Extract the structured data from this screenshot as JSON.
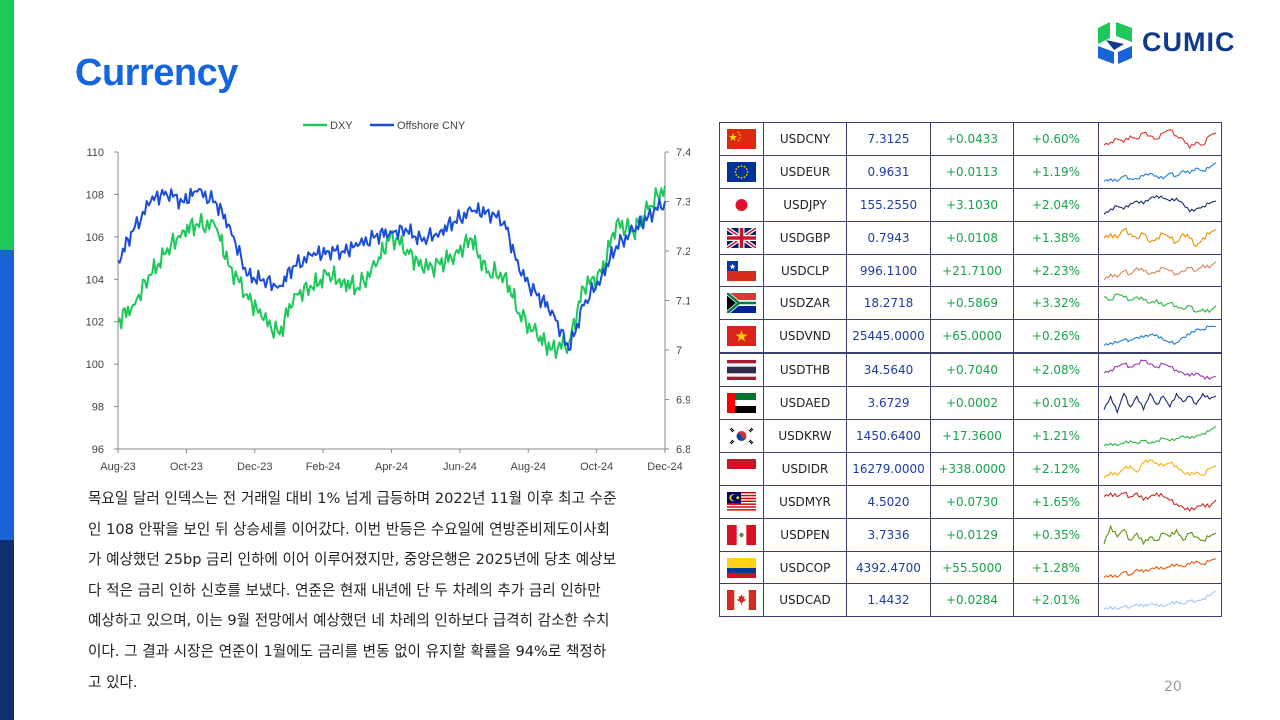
{
  "page": {
    "title": "Currency",
    "page_number": "20"
  },
  "logo": {
    "text": "CUMIC",
    "icon": "cumic-logo-icon"
  },
  "paragraph": "목요일 달러 인덱스는 전 거래일 대비 1% 넘게 급등하며 2022년 11월 이후 최고 수준인 108 안팎을 보인 뒤 상승세를 이어갔다. 이번 반등은 수요일에 연방준비제도이사회가 예상했던 25bp 금리 인하에 이어 이루어졌지만, 중앙은행은 2025년에 당초 예상보다 적은 금리 인하 신호를 보냈다. 연준은 현재 내년에 단 두 차례의 추가 금리 인하만 예상하고 있으며, 이는 9월 전망에서 예상했던 네 차례의 인하보다 급격히 감소한 수치이다. 그 결과 시장은 연준이 1월에도 금리를 변동 없이 유지할 확률을 94%로 책정하고 있다.",
  "paragraph_lines": [
    "목요일 달러 인덱스는 전 거래일 대비 1% 넘게 급등하며 2022년 11월 이후 최고 수준",
    "인 108 안팎을 보인 뒤 상승세를 이어갔다. 이번 반등은 수요일에 연방준비제도이사회",
    "가 예상했던 25bp 금리 인하에 이어 이루어졌지만, 중앙은행은 2025년에 당초 예상보",
    "다 적은 금리 인하 신호를 보냈다. 연준은 현재 내년에 단 두 차례의 추가 금리 인하만",
    "예상하고 있으며, 이는 9월 전망에서 예상했던 네 차례의 인하보다 급격히 감소한 수치",
    "이다. 그 결과 시장은 연준이 1월에도 금리를 변동 없이 유지할 확률을 94%로 책정하",
    "고 있다."
  ],
  "chart_data": {
    "type": "line",
    "title": "",
    "legend_position": "top",
    "x_tick_labels": [
      "Aug-23",
      "Oct-23",
      "Dec-23",
      "Feb-24",
      "Apr-24",
      "Jun-24",
      "Aug-24",
      "Oct-24",
      "Dec-24"
    ],
    "y_left": {
      "ticks": [
        "110",
        "108",
        "106",
        "104",
        "102",
        "100",
        "98",
        "96"
      ],
      "ylim": [
        96,
        110
      ]
    },
    "y_right": {
      "ticks": [
        "7.4",
        "7.3",
        "7.2",
        "7.1",
        "7",
        "6.9",
        "6.8"
      ],
      "ylim": [
        6.8,
        7.4
      ]
    },
    "series": [
      {
        "name": "DXY",
        "axis": "left",
        "color": "#1ec85a",
        "x": [
          "2023-08-01",
          "2023-08-15",
          "2023-09-01",
          "2023-09-15",
          "2023-10-01",
          "2023-10-15",
          "2023-11-01",
          "2023-11-15",
          "2023-12-01",
          "2023-12-15",
          "2024-01-01",
          "2024-01-15",
          "2024-02-01",
          "2024-02-15",
          "2024-03-01",
          "2024-03-15",
          "2024-04-01",
          "2024-04-15",
          "2024-05-01",
          "2024-05-15",
          "2024-06-01",
          "2024-06-15",
          "2024-07-01",
          "2024-07-15",
          "2024-08-01",
          "2024-08-15",
          "2024-09-01",
          "2024-09-15",
          "2024-10-01",
          "2024-10-15",
          "2024-11-01",
          "2024-11-15",
          "2024-12-01",
          "2024-12-15",
          "2024-12-31"
        ],
        "values": [
          102.0,
          102.8,
          104.2,
          105.2,
          106.3,
          106.6,
          106.5,
          104.6,
          103.3,
          102.2,
          101.4,
          103.3,
          103.6,
          104.2,
          103.9,
          103.6,
          104.6,
          106.1,
          105.4,
          104.5,
          104.7,
          105.2,
          105.9,
          104.3,
          104.2,
          102.4,
          101.3,
          100.7,
          101.0,
          103.6,
          104.3,
          106.7,
          106.2,
          107.3,
          108.4
        ]
      },
      {
        "name": "Offshore CNY",
        "axis": "right",
        "color": "#1a4ed8",
        "x": [
          "2023-08-01",
          "2023-08-15",
          "2023-09-01",
          "2023-09-15",
          "2023-10-01",
          "2023-10-15",
          "2023-11-01",
          "2023-11-15",
          "2023-12-01",
          "2023-12-15",
          "2024-01-01",
          "2024-01-15",
          "2024-02-01",
          "2024-02-15",
          "2024-03-01",
          "2024-03-15",
          "2024-04-01",
          "2024-04-15",
          "2024-05-01",
          "2024-05-15",
          "2024-06-01",
          "2024-06-15",
          "2024-07-01",
          "2024-07-15",
          "2024-08-01",
          "2024-08-15",
          "2024-09-01",
          "2024-09-15",
          "2024-10-01",
          "2024-10-15",
          "2024-11-01",
          "2024-11-15",
          "2024-12-01",
          "2024-12-15",
          "2024-12-31"
        ],
        "values": [
          7.18,
          7.24,
          7.3,
          7.32,
          7.3,
          7.32,
          7.3,
          7.25,
          7.15,
          7.14,
          7.13,
          7.17,
          7.19,
          7.2,
          7.2,
          7.21,
          7.23,
          7.24,
          7.24,
          7.22,
          7.24,
          7.26,
          7.28,
          7.28,
          7.26,
          7.16,
          7.11,
          7.08,
          7.0,
          7.09,
          7.15,
          7.21,
          7.24,
          7.27,
          7.3
        ]
      }
    ]
  },
  "table": {
    "rows": [
      {
        "flag": "cn-flag",
        "code": "USDCNY",
        "rate": "7.3125",
        "change": "+0.0433",
        "pct": "+0.60%",
        "spark_color": "#e03131",
        "spark": [
          5,
          6,
          7,
          6,
          8,
          7,
          9,
          8,
          7,
          9,
          10,
          8,
          7,
          4,
          6,
          5,
          8,
          9
        ]
      },
      {
        "flag": "eu-flag",
        "code": "USDEUR",
        "rate": "0.9631",
        "change": "+0.0113",
        "pct": "+1.19%",
        "spark_color": "#1c7ed6",
        "spark": [
          4,
          5,
          4,
          6,
          5,
          5,
          6,
          7,
          6,
          5,
          7,
          6,
          8,
          7,
          9,
          8,
          9,
          11
        ]
      },
      {
        "flag": "jp-flag",
        "code": "USDJPY",
        "rate": "155.2550",
        "change": "+3.1030",
        "pct": "+2.04%",
        "spark_color": "#1a2b6b",
        "spark": [
          3,
          5,
          6,
          5,
          7,
          8,
          7,
          9,
          10,
          9,
          8,
          9,
          7,
          4,
          5,
          6,
          7,
          8
        ]
      },
      {
        "flag": "gb-flag",
        "code": "USDGBP",
        "rate": "0.7943",
        "change": "+0.0108",
        "pct": "+1.38%",
        "spark_color": "#f08c00",
        "spark": [
          6,
          7,
          6,
          8,
          7,
          6,
          7,
          5,
          6,
          7,
          6,
          5,
          7,
          6,
          4,
          6,
          7,
          8
        ]
      },
      {
        "flag": "cl-flag",
        "code": "USDCLP",
        "rate": "996.1100",
        "change": "+21.7100",
        "pct": "+2.23%",
        "spark_color": "#d9865a",
        "spark": [
          3,
          5,
          4,
          6,
          5,
          7,
          6,
          5,
          6,
          7,
          6,
          5,
          6,
          7,
          6,
          8,
          7,
          9
        ]
      },
      {
        "flag": "za-flag",
        "code": "USDZAR",
        "rate": "18.2718",
        "change": "+0.5869",
        "pct": "+3.32%",
        "spark_color": "#2fb344",
        "spark": [
          8,
          7,
          9,
          8,
          7,
          8,
          7,
          6,
          7,
          5,
          6,
          5,
          4,
          5,
          3,
          4,
          3,
          5
        ]
      },
      {
        "flag": "vn-flag",
        "code": "USDVND",
        "rate": "25445.0000",
        "change": "+65.0000",
        "pct": "+0.26%",
        "spark_color": "#1c7ed6",
        "spark": [
          2,
          3,
          3,
          4,
          4,
          5,
          5,
          6,
          6,
          4,
          3,
          3,
          5,
          6,
          8,
          8,
          9,
          9
        ]
      },
      {
        "flag": "th-flag",
        "code": "USDTHB",
        "rate": "34.5640",
        "change": "+0.7040",
        "pct": "+2.08%",
        "spark_color": "#9c36b5",
        "spark": [
          6,
          7,
          8,
          9,
          8,
          9,
          10,
          9,
          8,
          9,
          8,
          7,
          6,
          5,
          6,
          5,
          4,
          5
        ]
      },
      {
        "flag": "ae-flag",
        "code": "USDAED",
        "rate": "3.6729",
        "change": "+0.0002",
        "pct": "+0.01%",
        "spark_color": "#1a2b6b",
        "spark": [
          4,
          9,
          3,
          10,
          5,
          9,
          4,
          10,
          6,
          9,
          5,
          10,
          7,
          9,
          6,
          10,
          8,
          9
        ]
      },
      {
        "flag": "kr-flag",
        "code": "USDKRW",
        "rate": "1450.6400",
        "change": "+17.3600",
        "pct": "+1.21%",
        "spark_color": "#2fb344",
        "spark": [
          2,
          3,
          2,
          3,
          4,
          3,
          4,
          3,
          4,
          5,
          4,
          5,
          6,
          5,
          6,
          7,
          8,
          10
        ]
      },
      {
        "flag": "id-flag",
        "code": "USDIDR",
        "rate": "16279.0000",
        "change": "+338.0000",
        "pct": "+2.12%",
        "spark_color": "#fab005",
        "spark": [
          4,
          6,
          5,
          7,
          8,
          6,
          9,
          10,
          9,
          8,
          9,
          8,
          6,
          5,
          6,
          5,
          7,
          8
        ]
      },
      {
        "flag": "my-flag",
        "code": "USDMYR",
        "rate": "4.5020",
        "change": "+0.0730",
        "pct": "+1.65%",
        "spark_color": "#c92a2a",
        "spark": [
          9,
          10,
          9,
          10,
          9,
          10,
          8,
          9,
          10,
          9,
          8,
          7,
          6,
          5,
          6,
          7,
          6,
          8
        ]
      },
      {
        "flag": "pe-flag",
        "code": "USDPEN",
        "rate": "3.7336",
        "change": "+0.0129",
        "pct": "+0.35%",
        "spark_color": "#5c940d",
        "spark": [
          4,
          9,
          6,
          8,
          5,
          7,
          4,
          6,
          5,
          7,
          6,
          8,
          5,
          7,
          6,
          5,
          6,
          7
        ]
      },
      {
        "flag": "co-flag",
        "code": "USDCOP",
        "rate": "4392.4700",
        "change": "+55.5000",
        "pct": "+1.28%",
        "spark_color": "#e8590c",
        "spark": [
          3,
          4,
          3,
          5,
          4,
          6,
          5,
          6,
          7,
          6,
          7,
          8,
          7,
          8,
          9,
          8,
          9,
          10
        ]
      },
      {
        "flag": "ca-flag",
        "code": "USDCAD",
        "rate": "1.4432",
        "change": "+0.0284",
        "pct": "+2.01%",
        "spark_color": "#a5c8f0",
        "spark": [
          3,
          4,
          3,
          4,
          4,
          5,
          4,
          5,
          5,
          4,
          5,
          6,
          5,
          6,
          6,
          7,
          8,
          10
        ]
      }
    ]
  }
}
